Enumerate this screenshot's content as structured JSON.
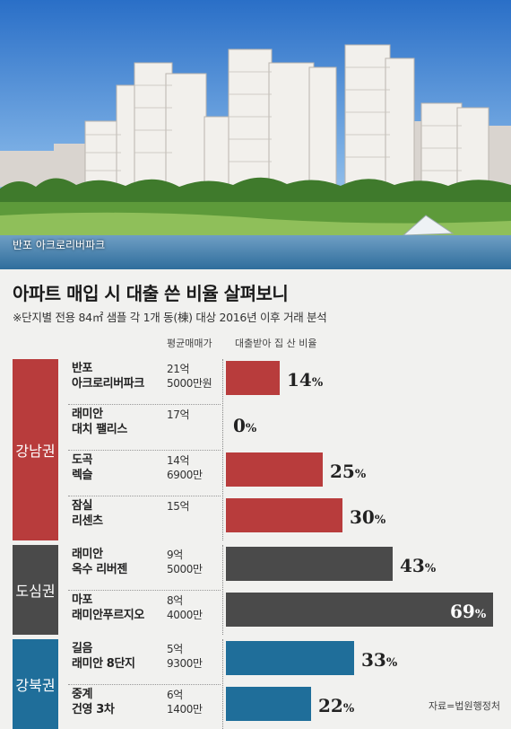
{
  "photo": {
    "caption": "반포 아크로리버파크"
  },
  "title": "아파트 매입 시 대출 쓴 비율 살펴보니",
  "subtitle": "※단지별 전용 84㎡ 샘플 각 1개 동(棟) 대상 2016년 이후 거래 분석",
  "headers": {
    "price": "평균매매가",
    "ratio": "대출받아 집 산 비율"
  },
  "source": "자료=법원행정처",
  "colors": {
    "gangnam": "#b83c3c",
    "dosim": "#4a4a4a",
    "gangbuk": "#1f6e9a"
  },
  "chart_data": {
    "type": "bar",
    "orientation": "horizontal",
    "title": "아파트 매입 시 대출 쓴 비율 살펴보니",
    "value_label": "대출받아 집 산 비율",
    "unit": "%",
    "xlim": [
      0,
      69
    ],
    "groups": [
      {
        "name": "강남권",
        "color": "#b83c3c",
        "items": [
          {
            "name_lines": [
              "반포",
              "아크로리버파크"
            ],
            "price_lines": [
              "21억",
              "5000만원"
            ],
            "value": 14
          },
          {
            "name_lines": [
              "래미안",
              "대치 팰리스"
            ],
            "price_lines": [
              "17억"
            ],
            "value": 0
          },
          {
            "name_lines": [
              "도곡",
              "렉슬"
            ],
            "price_lines": [
              "14억",
              "6900만"
            ],
            "value": 25
          },
          {
            "name_lines": [
              "잠실",
              "리센츠"
            ],
            "price_lines": [
              "15억"
            ],
            "value": 30
          }
        ]
      },
      {
        "name": "도심권",
        "color": "#4a4a4a",
        "items": [
          {
            "name_lines": [
              "래미안",
              "옥수 리버젠"
            ],
            "price_lines": [
              "9억",
              "5000만"
            ],
            "value": 43
          },
          {
            "name_lines": [
              "마포",
              "래미안푸르지오"
            ],
            "price_lines": [
              "8억",
              "4000만"
            ],
            "value": 69
          }
        ]
      },
      {
        "name": "강북권",
        "color": "#1f6e9a",
        "items": [
          {
            "name_lines": [
              "길음",
              "래미안 8단지"
            ],
            "price_lines": [
              "5억",
              "9300만"
            ],
            "value": 33
          },
          {
            "name_lines": [
              "중계",
              "건영 3차"
            ],
            "price_lines": [
              "6억",
              "1400만"
            ],
            "value": 22
          }
        ]
      }
    ]
  }
}
